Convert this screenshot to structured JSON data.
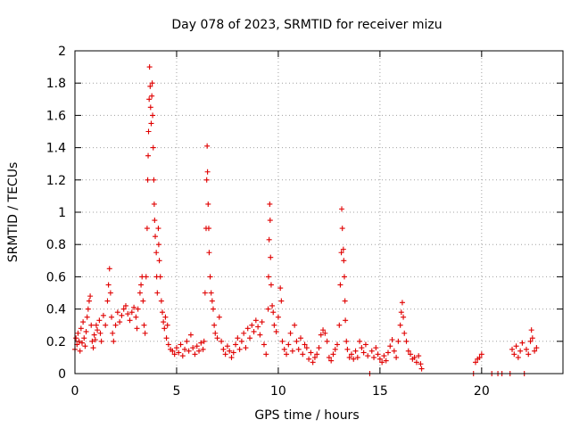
{
  "chart_data": {
    "type": "scatter",
    "marker": "plus",
    "title": "Day 078 of 2023, SRMTID for receiver mizu",
    "xlabel": "GPS time / hours",
    "ylabel": "SRMTID / TECUs",
    "xlim": [
      0,
      24
    ],
    "ylim": [
      0,
      2
    ],
    "x_ticks": [
      0,
      5,
      10,
      15,
      20
    ],
    "x_tick_labels": [
      "0",
      "5",
      "10",
      "15",
      "20"
    ],
    "y_ticks": [
      0,
      0.2,
      0.4,
      0.6,
      0.8,
      1,
      1.2,
      1.4,
      1.6,
      1.8,
      2
    ],
    "y_tick_labels": [
      "0",
      "0.2",
      "0.4",
      "0.6",
      "0.8",
      "1",
      "1.2",
      "1.4",
      "1.6",
      "1.8",
      "2"
    ],
    "grid": true,
    "series_color": "#e00000",
    "series": [
      {
        "name": "SRMTID",
        "points": [
          [
            0.0,
            0.15
          ],
          [
            0.05,
            0.22
          ],
          [
            0.1,
            0.18
          ],
          [
            0.15,
            0.25
          ],
          [
            0.2,
            0.2
          ],
          [
            0.25,
            0.14
          ],
          [
            0.3,
            0.28
          ],
          [
            0.35,
            0.19
          ],
          [
            0.4,
            0.32
          ],
          [
            0.45,
            0.22
          ],
          [
            0.5,
            0.17
          ],
          [
            0.55,
            0.26
          ],
          [
            0.6,
            0.35
          ],
          [
            0.65,
            0.4
          ],
          [
            0.7,
            0.45
          ],
          [
            0.75,
            0.48
          ],
          [
            0.8,
            0.3
          ],
          [
            0.85,
            0.2
          ],
          [
            0.9,
            0.16
          ],
          [
            0.95,
            0.24
          ],
          [
            1.0,
            0.21
          ],
          [
            1.05,
            0.3
          ],
          [
            1.1,
            0.27
          ],
          [
            1.2,
            0.33
          ],
          [
            1.25,
            0.25
          ],
          [
            1.3,
            0.2
          ],
          [
            1.4,
            0.36
          ],
          [
            1.5,
            0.3
          ],
          [
            1.6,
            0.45
          ],
          [
            1.65,
            0.55
          ],
          [
            1.7,
            0.65
          ],
          [
            1.75,
            0.5
          ],
          [
            1.8,
            0.35
          ],
          [
            1.85,
            0.25
          ],
          [
            1.9,
            0.2
          ],
          [
            2.0,
            0.3
          ],
          [
            2.1,
            0.38
          ],
          [
            2.2,
            0.32
          ],
          [
            2.3,
            0.36
          ],
          [
            2.4,
            0.4
          ],
          [
            2.5,
            0.42
          ],
          [
            2.6,
            0.37
          ],
          [
            2.7,
            0.33
          ],
          [
            2.8,
            0.38
          ],
          [
            2.9,
            0.41
          ],
          [
            3.0,
            0.35
          ],
          [
            3.05,
            0.28
          ],
          [
            3.1,
            0.4
          ],
          [
            3.2,
            0.5
          ],
          [
            3.25,
            0.55
          ],
          [
            3.3,
            0.6
          ],
          [
            3.35,
            0.45
          ],
          [
            3.4,
            0.3
          ],
          [
            3.45,
            0.25
          ],
          [
            3.5,
            0.6
          ],
          [
            3.55,
            0.9
          ],
          [
            3.58,
            1.2
          ],
          [
            3.6,
            1.35
          ],
          [
            3.62,
            1.5
          ],
          [
            3.65,
            1.7
          ],
          [
            3.67,
            1.9
          ],
          [
            3.7,
            1.78
          ],
          [
            3.72,
            1.65
          ],
          [
            3.75,
            1.55
          ],
          [
            3.78,
            1.72
          ],
          [
            3.8,
            1.8
          ],
          [
            3.82,
            1.6
          ],
          [
            3.85,
            1.4
          ],
          [
            3.88,
            1.2
          ],
          [
            3.9,
            1.05
          ],
          [
            3.92,
            0.95
          ],
          [
            3.95,
            0.85
          ],
          [
            4.0,
            0.75
          ],
          [
            4.02,
            0.6
          ],
          [
            4.05,
            0.5
          ],
          [
            4.1,
            0.9
          ],
          [
            4.12,
            0.8
          ],
          [
            4.15,
            0.7
          ],
          [
            4.2,
            0.6
          ],
          [
            4.25,
            0.45
          ],
          [
            4.3,
            0.38
          ],
          [
            4.35,
            0.32
          ],
          [
            4.4,
            0.28
          ],
          [
            4.45,
            0.35
          ],
          [
            4.5,
            0.22
          ],
          [
            4.55,
            0.3
          ],
          [
            4.6,
            0.18
          ],
          [
            4.7,
            0.15
          ],
          [
            4.8,
            0.14
          ],
          [
            4.9,
            0.12
          ],
          [
            5.0,
            0.16
          ],
          [
            5.1,
            0.13
          ],
          [
            5.2,
            0.18
          ],
          [
            5.3,
            0.11
          ],
          [
            5.4,
            0.15
          ],
          [
            5.5,
            0.2
          ],
          [
            5.6,
            0.14
          ],
          [
            5.7,
            0.24
          ],
          [
            5.8,
            0.16
          ],
          [
            5.9,
            0.12
          ],
          [
            6.0,
            0.17
          ],
          [
            6.1,
            0.14
          ],
          [
            6.2,
            0.19
          ],
          [
            6.3,
            0.15
          ],
          [
            6.35,
            0.2
          ],
          [
            6.4,
            0.5
          ],
          [
            6.45,
            0.9
          ],
          [
            6.48,
            1.2
          ],
          [
            6.5,
            1.41
          ],
          [
            6.52,
            1.25
          ],
          [
            6.55,
            1.05
          ],
          [
            6.58,
            0.9
          ],
          [
            6.6,
            0.75
          ],
          [
            6.65,
            0.6
          ],
          [
            6.7,
            0.5
          ],
          [
            6.75,
            0.45
          ],
          [
            6.8,
            0.4
          ],
          [
            6.85,
            0.3
          ],
          [
            6.9,
            0.25
          ],
          [
            7.0,
            0.22
          ],
          [
            7.1,
            0.35
          ],
          [
            7.2,
            0.2
          ],
          [
            7.3,
            0.15
          ],
          [
            7.4,
            0.12
          ],
          [
            7.5,
            0.17
          ],
          [
            7.6,
            0.14
          ],
          [
            7.7,
            0.1
          ],
          [
            7.8,
            0.13
          ],
          [
            7.9,
            0.18
          ],
          [
            8.0,
            0.22
          ],
          [
            8.1,
            0.15
          ],
          [
            8.2,
            0.2
          ],
          [
            8.3,
            0.25
          ],
          [
            8.4,
            0.16
          ],
          [
            8.5,
            0.28
          ],
          [
            8.6,
            0.22
          ],
          [
            8.7,
            0.3
          ],
          [
            8.8,
            0.26
          ],
          [
            8.9,
            0.33
          ],
          [
            9.0,
            0.29
          ],
          [
            9.1,
            0.24
          ],
          [
            9.2,
            0.32
          ],
          [
            9.3,
            0.18
          ],
          [
            9.4,
            0.12
          ],
          [
            9.5,
            0.4
          ],
          [
            9.52,
            0.6
          ],
          [
            9.55,
            0.83
          ],
          [
            9.58,
            1.05
          ],
          [
            9.6,
            0.95
          ],
          [
            9.62,
            0.72
          ],
          [
            9.65,
            0.55
          ],
          [
            9.7,
            0.42
          ],
          [
            9.75,
            0.38
          ],
          [
            9.8,
            0.3
          ],
          [
            9.9,
            0.26
          ],
          [
            10.0,
            0.35
          ],
          [
            10.1,
            0.53
          ],
          [
            10.15,
            0.45
          ],
          [
            10.2,
            0.2
          ],
          [
            10.3,
            0.15
          ],
          [
            10.4,
            0.12
          ],
          [
            10.5,
            0.18
          ],
          [
            10.6,
            0.25
          ],
          [
            10.7,
            0.14
          ],
          [
            10.8,
            0.3
          ],
          [
            10.9,
            0.2
          ],
          [
            11.0,
            0.15
          ],
          [
            11.1,
            0.22
          ],
          [
            11.2,
            0.12
          ],
          [
            11.3,
            0.18
          ],
          [
            11.4,
            0.16
          ],
          [
            11.5,
            0.09
          ],
          [
            11.6,
            0.13
          ],
          [
            11.7,
            0.07
          ],
          [
            11.8,
            0.1
          ],
          [
            11.9,
            0.12
          ],
          [
            12.0,
            0.16
          ],
          [
            12.1,
            0.24
          ],
          [
            12.2,
            0.27
          ],
          [
            12.3,
            0.25
          ],
          [
            12.4,
            0.2
          ],
          [
            12.5,
            0.1
          ],
          [
            12.6,
            0.08
          ],
          [
            12.7,
            0.12
          ],
          [
            12.8,
            0.15
          ],
          [
            12.9,
            0.18
          ],
          [
            13.0,
            0.3
          ],
          [
            13.05,
            0.55
          ],
          [
            13.1,
            0.75
          ],
          [
            13.12,
            1.02
          ],
          [
            13.15,
            0.9
          ],
          [
            13.2,
            0.77
          ],
          [
            13.22,
            0.7
          ],
          [
            13.25,
            0.6
          ],
          [
            13.28,
            0.45
          ],
          [
            13.3,
            0.33
          ],
          [
            13.35,
            0.2
          ],
          [
            13.4,
            0.15
          ],
          [
            13.5,
            0.1
          ],
          [
            13.6,
            0.12
          ],
          [
            13.7,
            0.09
          ],
          [
            13.8,
            0.14
          ],
          [
            13.9,
            0.1
          ],
          [
            14.0,
            0.2
          ],
          [
            14.1,
            0.16
          ],
          [
            14.2,
            0.13
          ],
          [
            14.3,
            0.18
          ],
          [
            14.4,
            0.11
          ],
          [
            14.5,
            0.0
          ],
          [
            14.6,
            0.14
          ],
          [
            14.7,
            0.1
          ],
          [
            14.8,
            0.16
          ],
          [
            14.9,
            0.12
          ],
          [
            15.0,
            0.09
          ],
          [
            15.1,
            0.07
          ],
          [
            15.2,
            0.11
          ],
          [
            15.3,
            0.08
          ],
          [
            15.4,
            0.13
          ],
          [
            15.5,
            0.17
          ],
          [
            15.6,
            0.21
          ],
          [
            15.7,
            0.14
          ],
          [
            15.8,
            0.1
          ],
          [
            15.9,
            0.2
          ],
          [
            16.0,
            0.3
          ],
          [
            16.05,
            0.38
          ],
          [
            16.1,
            0.44
          ],
          [
            16.15,
            0.35
          ],
          [
            16.2,
            0.25
          ],
          [
            16.3,
            0.2
          ],
          [
            16.4,
            0.14
          ],
          [
            16.5,
            0.12
          ],
          [
            16.6,
            0.09
          ],
          [
            16.7,
            0.1
          ],
          [
            16.8,
            0.07
          ],
          [
            16.9,
            0.11
          ],
          [
            17.0,
            0.06
          ],
          [
            17.05,
            0.03
          ],
          [
            19.6,
            0.0
          ],
          [
            19.7,
            0.07
          ],
          [
            19.8,
            0.09
          ],
          [
            19.9,
            0.1
          ],
          [
            20.0,
            0.12
          ],
          [
            20.5,
            0.0
          ],
          [
            20.8,
            0.0
          ],
          [
            21.0,
            0.0
          ],
          [
            21.4,
            0.0
          ],
          [
            21.5,
            0.15
          ],
          [
            21.6,
            0.12
          ],
          [
            21.7,
            0.17
          ],
          [
            21.8,
            0.1
          ],
          [
            21.9,
            0.14
          ],
          [
            22.0,
            0.19
          ],
          [
            22.1,
            0.0
          ],
          [
            22.2,
            0.15
          ],
          [
            22.3,
            0.12
          ],
          [
            22.4,
            0.2
          ],
          [
            22.45,
            0.27
          ],
          [
            22.5,
            0.22
          ],
          [
            22.6,
            0.14
          ],
          [
            22.7,
            0.16
          ]
        ]
      }
    ]
  }
}
